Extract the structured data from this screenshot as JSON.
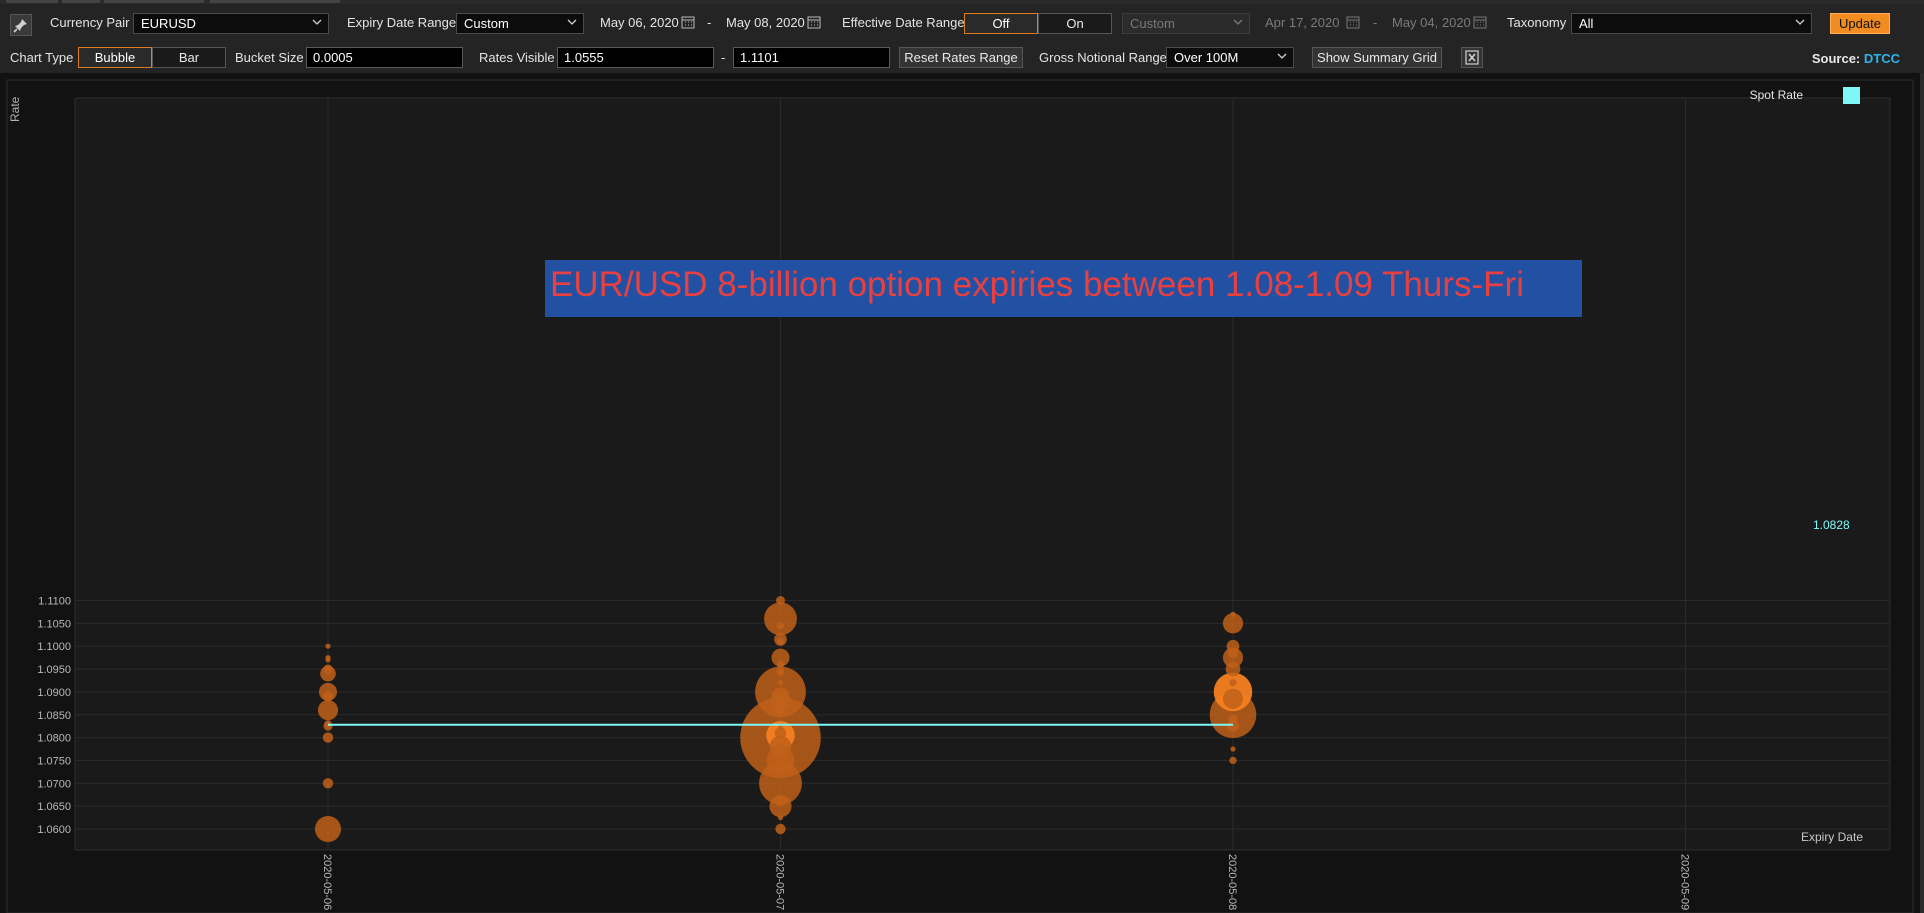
{
  "toolbar": {
    "currency_pair_label": "Currency Pair",
    "currency_pair_value": "EURUSD",
    "expiry_range_label": "Expiry Date Range",
    "expiry_range_value": "Custom",
    "expiry_from": "May 06, 2020",
    "expiry_to": "May 08, 2020",
    "range_separator": "-",
    "effective_range_label": "Effective Date Range",
    "effective_off": "Off",
    "effective_on": "On",
    "effective_range_value": "Custom",
    "effective_from": "Apr 17, 2020",
    "effective_to": "May 04, 2020",
    "taxonomy_label": "Taxonomy",
    "taxonomy_value": "All",
    "update_label": "Update"
  },
  "toolbar2": {
    "chart_type_label": "Chart Type",
    "chart_type_bubble": "Bubble",
    "chart_type_bar": "Bar",
    "bucket_size_label": "Bucket Size",
    "bucket_size_value": "0.0005",
    "rates_visible_label": "Rates Visible",
    "rates_visible_min": "1.0555",
    "rates_visible_max": "1.1101",
    "reset_label": "Reset Rates Range",
    "gross_notional_label": "Gross Notional Range",
    "gross_notional_value": "Over 100M",
    "summary_grid_label": "Show Summary Grid",
    "source_label": "Source:",
    "source_value": "DTCC"
  },
  "colors": {
    "background": "#1a1a1a",
    "bubble": "#c0601a",
    "bubble_highlight": "#f47f20",
    "spot_rate": "#7ff7f7",
    "annotation_bg": "#2251a3",
    "annotation_text": "#e84040",
    "accent": "#f08c20"
  },
  "annotation": {
    "text": "EUR/USD 8-billion option expiries between 1.08-1.09 Thurs-Fri"
  },
  "chart_data": {
    "type": "scatter",
    "xlabel": "Expiry Date",
    "ylabel": "Rate",
    "x_ticks": [
      "2020-05-06",
      "2020-05-07",
      "2020-05-08",
      "2020-05-09"
    ],
    "y_ticks": [
      "1.0600",
      "1.0650",
      "1.0700",
      "1.0750",
      "1.0800",
      "1.0850",
      "1.0900",
      "1.0950",
      "1.1000",
      "1.1050",
      "1.1100"
    ],
    "ylim": [
      1.0578,
      1.1177
    ],
    "grid": true,
    "legend": {
      "label": "Spot Rate",
      "position": "top-right"
    },
    "spot_rate": {
      "value": 1.0828,
      "label": "1.0828",
      "x_start": "2020-05-06",
      "x_end": "2020-05-08"
    },
    "bubble_size_note": "relative gross notional",
    "series": [
      {
        "x": "2020-05-06",
        "points": [
          {
            "y": 1.1,
            "size": 1
          },
          {
            "y": 1.0975,
            "size": 1
          },
          {
            "y": 1.097,
            "size": 1
          },
          {
            "y": 1.095,
            "size": 3
          },
          {
            "y": 1.094,
            "size": 9
          },
          {
            "y": 1.09,
            "size": 12
          },
          {
            "y": 1.089,
            "size": 4
          },
          {
            "y": 1.086,
            "size": 15
          },
          {
            "y": 1.083,
            "size": 2
          },
          {
            "y": 1.0825,
            "size": 3
          },
          {
            "y": 1.08,
            "size": 4
          },
          {
            "y": 1.07,
            "size": 4
          },
          {
            "y": 1.06,
            "size": 25
          }
        ]
      },
      {
        "x": "2020-05-07",
        "points": [
          {
            "y": 1.11,
            "size": 3
          },
          {
            "y": 1.106,
            "size": 40
          },
          {
            "y": 1.1045,
            "size": 2
          },
          {
            "y": 1.1015,
            "size": 6
          },
          {
            "y": 1.101,
            "size": 2
          },
          {
            "y": 1.0975,
            "size": 12
          },
          {
            "y": 1.096,
            "size": 2
          },
          {
            "y": 1.0945,
            "size": 2
          },
          {
            "y": 1.094,
            "size": 1
          },
          {
            "y": 1.092,
            "size": 1
          },
          {
            "y": 1.09,
            "size": 95
          },
          {
            "y": 1.089,
            "size": 12
          },
          {
            "y": 1.088,
            "size": 14
          },
          {
            "y": 1.0875,
            "size": 5
          },
          {
            "y": 1.086,
            "size": 2
          },
          {
            "y": 1.0855,
            "size": 3
          },
          {
            "y": 1.0825,
            "size": 1
          },
          {
            "y": 1.081,
            "size": 5
          },
          {
            "y": 1.08,
            "size": 240
          },
          {
            "y": 1.0805,
            "size": 30,
            "highlight": true
          },
          {
            "y": 1.078,
            "size": 18
          },
          {
            "y": 1.0775,
            "size": 4
          },
          {
            "y": 1.075,
            "size": 28
          },
          {
            "y": 1.07,
            "size": 68
          },
          {
            "y": 1.066,
            "size": 3
          },
          {
            "y": 1.065,
            "size": 18
          },
          {
            "y": 1.0625,
            "size": 1
          },
          {
            "y": 1.06,
            "size": 4
          }
        ]
      },
      {
        "x": "2020-05-08",
        "points": [
          {
            "y": 1.107,
            "size": 1
          },
          {
            "y": 1.105,
            "size": 15
          },
          {
            "y": 1.1,
            "size": 6
          },
          {
            "y": 1.0985,
            "size": 4
          },
          {
            "y": 1.0975,
            "size": 15
          },
          {
            "y": 1.095,
            "size": 8
          },
          {
            "y": 1.092,
            "size": 2
          },
          {
            "y": 1.09,
            "size": 55,
            "highlight": true
          },
          {
            "y": 1.0885,
            "size": 15
          },
          {
            "y": 1.085,
            "size": 80
          },
          {
            "y": 1.084,
            "size": 3
          },
          {
            "y": 1.0825,
            "size": 5
          },
          {
            "y": 1.0775,
            "size": 1
          },
          {
            "y": 1.075,
            "size": 2
          }
        ]
      },
      {
        "x": "2020-05-09",
        "points": []
      }
    ]
  }
}
